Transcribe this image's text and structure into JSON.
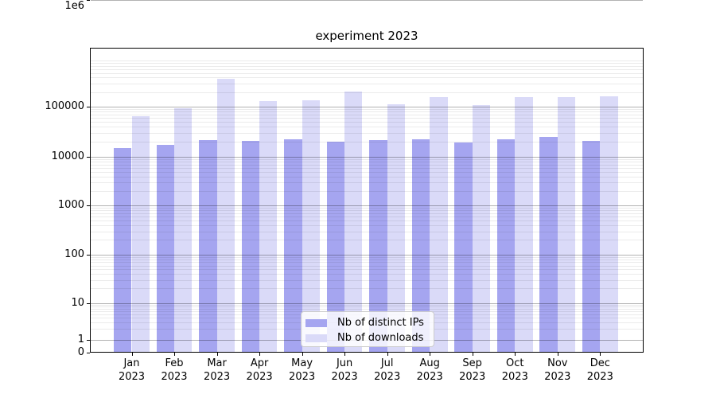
{
  "title": "experiment 2023",
  "chart_data": {
    "type": "bar",
    "title": "experiment 2023",
    "yscale": "symlog",
    "ylim": [
      0,
      1000000
    ],
    "grid": "horizontal major and minor gridlines",
    "legend_position": "lower center",
    "categories": [
      "Jan 2023",
      "Feb 2023",
      "Mar 2023",
      "Apr 2023",
      "May 2023",
      "Jun 2023",
      "Jul 2023",
      "Aug 2023",
      "Sep 2023",
      "Oct 2023",
      "Nov 2023",
      "Dec 2023"
    ],
    "series": [
      {
        "name": "Nb of distinct IPs",
        "color": "#a5a5f0",
        "values": [
          15000,
          17700,
          21800,
          20800,
          22900,
          20200,
          21500,
          22600,
          19700,
          22600,
          25500,
          21200
        ]
      },
      {
        "name": "Nb of downloads",
        "color": "#dadaf8",
        "values": [
          65000,
          94000,
          380000,
          131000,
          137000,
          210000,
          113000,
          157000,
          110000,
          157000,
          161000,
          168000
        ]
      }
    ],
    "yticks": [
      {
        "label": "0",
        "value": 0
      },
      {
        "label": "1",
        "value": 1
      },
      {
        "label": "10",
        "value": 10
      },
      {
        "label": "100",
        "value": 100
      },
      {
        "label": "1000",
        "value": 1000
      },
      {
        "label": "10000",
        "value": 10000
      },
      {
        "label": "100000",
        "value": 100000
      },
      {
        "label": "1e6",
        "value": 1000000
      }
    ]
  }
}
